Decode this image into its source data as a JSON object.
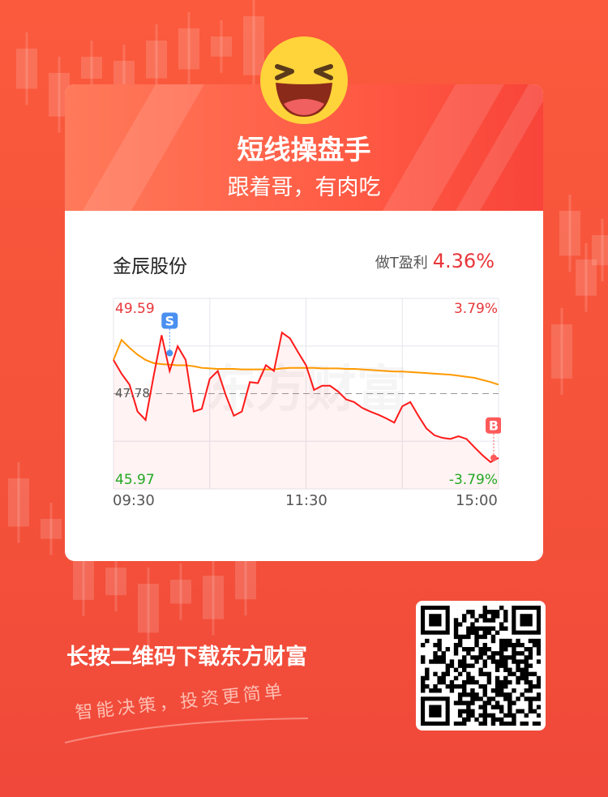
{
  "header": {
    "title": "短线操盘手",
    "subtitle": "跟着哥，有肉吃",
    "emoji_icon": "laughing-face-icon"
  },
  "stock": {
    "name": "金辰股份",
    "profit_label": "做T盈利",
    "profit_value": "4.36%"
  },
  "chart_data": {
    "type": "line",
    "y_labels": {
      "high": "49.59",
      "prev_close": "47.78",
      "low": "45.97",
      "high_pct": "3.79%",
      "low_pct": "-3.79%"
    },
    "ylim": [
      45.97,
      49.59
    ],
    "prev_close": 47.78,
    "x_ticks": [
      "09:30",
      "11:30",
      "15:00"
    ],
    "times": [
      "09:30",
      "09:35",
      "09:40",
      "09:45",
      "09:50",
      "09:55",
      "10:00",
      "10:05",
      "10:10",
      "10:15",
      "10:20",
      "10:25",
      "10:30",
      "10:35",
      "10:40",
      "10:45",
      "10:50",
      "10:55",
      "11:00",
      "11:05",
      "11:10",
      "11:15",
      "11:20",
      "11:25",
      "11:30",
      "13:05",
      "13:10",
      "13:15",
      "13:20",
      "13:25",
      "13:30",
      "13:35",
      "13:40",
      "13:45",
      "13:50",
      "13:55",
      "14:00",
      "14:05",
      "14:10",
      "14:15",
      "14:20",
      "14:25",
      "14:30",
      "14:35",
      "14:40",
      "14:45",
      "14:50",
      "14:55",
      "15:00"
    ],
    "series": [
      {
        "values": [
          48.42,
          48.16,
          47.95,
          47.44,
          47.28,
          48.11,
          48.89,
          48.21,
          48.68,
          48.42,
          47.44,
          47.49,
          48.06,
          48.21,
          47.75,
          47.36,
          47.44,
          48.0,
          47.98,
          48.32,
          48.21,
          48.94,
          48.83,
          48.57,
          48.32,
          47.85,
          47.93,
          47.93,
          47.82,
          47.67,
          47.62,
          47.51,
          47.44,
          47.38,
          47.31,
          47.23,
          47.54,
          47.62,
          47.36,
          47.12,
          46.99,
          46.94,
          46.92,
          46.97,
          46.92,
          46.76,
          46.61,
          46.48,
          46.56
        ],
        "color": "#ff1a1a"
      },
      {
        "values": [
          48.42,
          48.8,
          48.65,
          48.52,
          48.42,
          48.36,
          48.34,
          48.33,
          48.32,
          48.32,
          48.3,
          48.27,
          48.26,
          48.25,
          48.25,
          48.25,
          48.24,
          48.24,
          48.24,
          48.24,
          48.24,
          48.26,
          48.27,
          48.27,
          48.27,
          48.27,
          48.26,
          48.26,
          48.26,
          48.25,
          48.25,
          48.24,
          48.23,
          48.22,
          48.21,
          48.2,
          48.2,
          48.19,
          48.18,
          48.17,
          48.16,
          48.15,
          48.14,
          48.12,
          48.1,
          48.08,
          48.04,
          48.0,
          47.95
        ],
        "color": "#ff9900"
      }
    ],
    "markers": [
      {
        "label": "S",
        "time": "10:05",
        "price": 48.55,
        "color": "#4a90f0"
      },
      {
        "label": "B",
        "time": "15:00",
        "price": 46.56,
        "color": "#ff5a5a"
      }
    ],
    "grid": true,
    "watermark": "东方财富"
  },
  "footer": {
    "cta": "长按二维码下载东方财富",
    "slogan": "智能决策，投资更简单"
  }
}
